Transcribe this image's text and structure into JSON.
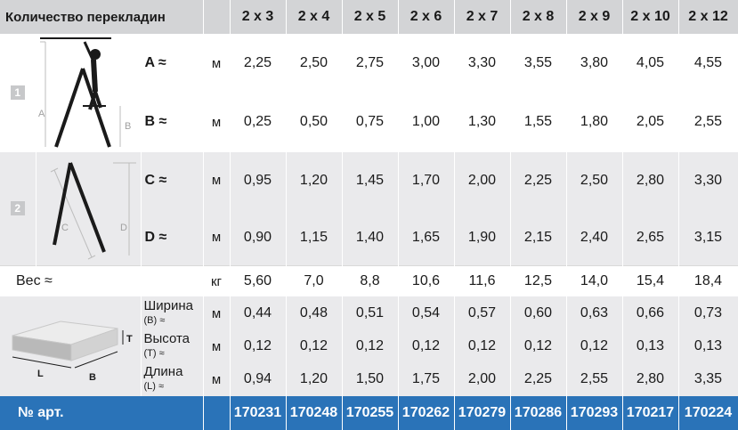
{
  "header": {
    "title": "Количество перекладин",
    "columns": [
      "2 x 3",
      "2 x 4",
      "2 x 5",
      "2 x 6",
      "2 x 7",
      "2 x 8",
      "2 x 9",
      "2 x 10",
      "2 x 12"
    ]
  },
  "section1": {
    "number": "1",
    "diagram_labels": {
      "a": "A",
      "b": "B"
    },
    "rows": [
      {
        "label": "A ≈",
        "unit": "м",
        "values": [
          "2,25",
          "2,50",
          "2,75",
          "3,00",
          "3,30",
          "3,55",
          "3,80",
          "4,05",
          "4,55"
        ]
      },
      {
        "label": "B ≈",
        "unit": "м",
        "values": [
          "0,25",
          "0,50",
          "0,75",
          "1,00",
          "1,30",
          "1,55",
          "1,80",
          "2,05",
          "2,55"
        ]
      }
    ]
  },
  "section2": {
    "number": "2",
    "diagram_labels": {
      "c": "C",
      "d": "D"
    },
    "rows": [
      {
        "label": "C ≈",
        "unit": "м",
        "values": [
          "0,95",
          "1,20",
          "1,45",
          "1,70",
          "2,00",
          "2,25",
          "2,50",
          "2,80",
          "3,30"
        ]
      },
      {
        "label": "D ≈",
        "unit": "м",
        "values": [
          "0,90",
          "1,15",
          "1,40",
          "1,65",
          "1,90",
          "2,15",
          "2,40",
          "2,65",
          "3,15"
        ]
      }
    ]
  },
  "weight": {
    "label": "Вес ≈",
    "unit": "кг",
    "values": [
      "5,60",
      "7,0",
      "8,8",
      "10,6",
      "11,6",
      "12,5",
      "14,0",
      "15,4",
      "18,4"
    ]
  },
  "dimensions": {
    "box_labels": {
      "t": "T",
      "l": "L",
      "b": "B"
    },
    "rows": [
      {
        "name": "Ширина",
        "sub": "(B) ≈",
        "unit": "м",
        "values": [
          "0,44",
          "0,48",
          "0,51",
          "0,54",
          "0,57",
          "0,60",
          "0,63",
          "0,66",
          "0,73"
        ]
      },
      {
        "name": "Высота",
        "sub": "(T) ≈",
        "unit": "м",
        "values": [
          "0,12",
          "0,12",
          "0,12",
          "0,12",
          "0,12",
          "0,12",
          "0,12",
          "0,13",
          "0,13"
        ]
      },
      {
        "name": "Длина",
        "sub": "(L) ≈",
        "unit": "м",
        "values": [
          "0,94",
          "1,20",
          "1,50",
          "1,75",
          "2,00",
          "2,25",
          "2,55",
          "2,80",
          "3,35"
        ]
      }
    ]
  },
  "article": {
    "label": "№ арт.",
    "values": [
      "170231",
      "170248",
      "170255",
      "170262",
      "170279",
      "170286",
      "170293",
      "170217",
      "170224"
    ]
  }
}
